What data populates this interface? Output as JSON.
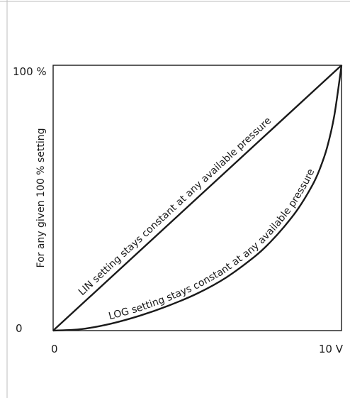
{
  "chart_data": {
    "type": "line",
    "title": "",
    "xlabel": "",
    "ylabel": "For any given 100 % setting",
    "xlim": [
      0,
      10
    ],
    "ylim": [
      0,
      100
    ],
    "grid": false,
    "x_ticks": [
      {
        "value": 0,
        "label": "0"
      },
      {
        "value": 10,
        "label": "10 V"
      }
    ],
    "y_ticks": [
      {
        "value": 0,
        "label": "0"
      },
      {
        "value": 100,
        "label": "100 %"
      }
    ],
    "series": [
      {
        "key": "lin",
        "annotation": "LIN setting stays constant at any available pressure",
        "x": [
          0,
          10
        ],
        "y": [
          0,
          100
        ]
      },
      {
        "key": "log",
        "annotation": "LOG setting stays constant at any available pressure",
        "x": [
          0,
          1,
          2,
          3,
          4,
          5,
          6,
          7,
          7.5,
          8,
          8.5,
          9,
          9.25,
          9.5,
          9.75,
          10
        ],
        "y": [
          0,
          0.6,
          2.6,
          5.6,
          9.4,
          14,
          20,
          28,
          33,
          39,
          46,
          55,
          61,
          69,
          81,
          100
        ]
      }
    ],
    "colors": {
      "line": "#1a1a1a",
      "frame": "#1a1a1a"
    }
  }
}
